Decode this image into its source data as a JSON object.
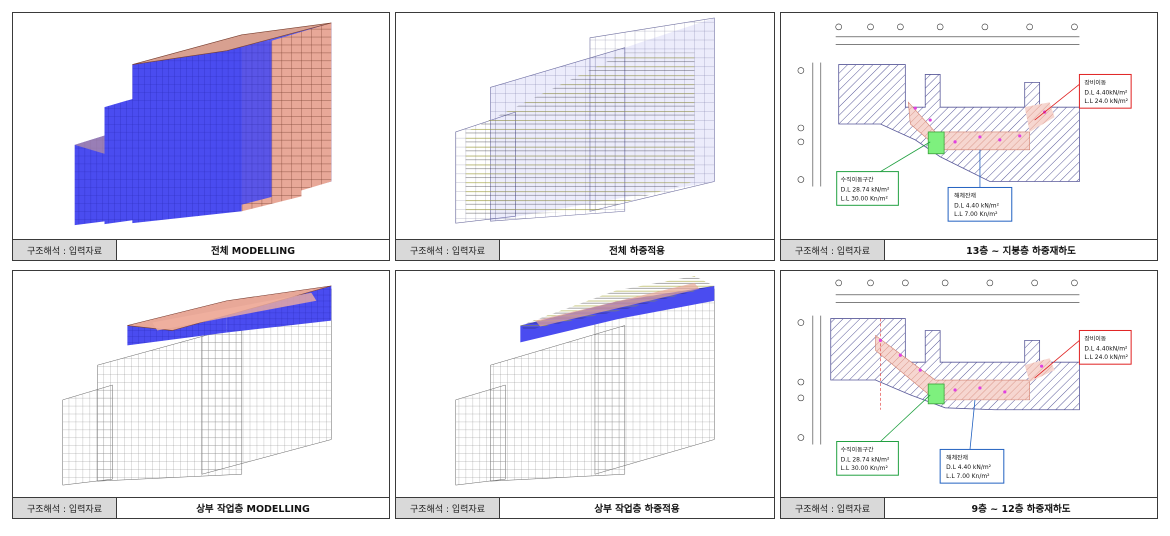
{
  "panels": [
    {
      "tag": "구조해석 : 입력자료",
      "title": "전체 MODELLING"
    },
    {
      "tag": "구조해석 : 입력자료",
      "title": "전체 하중적용"
    },
    {
      "tag": "구조해석 : 입력자료",
      "title": "13층 ~ 지붕층 하중재하도"
    },
    {
      "tag": "구조해석 : 입력자료",
      "title": "상부 작업층 MODELLING"
    },
    {
      "tag": "구조해석 : 입력자료",
      "title": "상부 작업층 하중적용"
    },
    {
      "tag": "구조해석 : 입력자료",
      "title": "9층 ~ 12층 하중재하도"
    }
  ],
  "plan_top": {
    "equipment": {
      "title": "장비이동",
      "dl": "D.L 4.40kN/m²",
      "ll": "L.L 24.0 kN/m²"
    },
    "vertical": {
      "title": "수직이동구간",
      "dl": "D.L 28.74 kN/m²",
      "ll": "L.L 30.00 Kn/m²"
    },
    "demolition": {
      "title": "해체잔재",
      "dl": "D.L 4.40 kN/m²",
      "ll": "L.L 7.00 Kn/m²"
    }
  },
  "plan_bottom": {
    "equipment": {
      "title": "장비이동",
      "dl": "D.L 4.40kN/m²",
      "ll": "L.L 24.0 kN/m²"
    },
    "vertical": {
      "title": "수직이동구간",
      "dl": "D.L 28.74 kN/m²",
      "ll": "L.L 30.00 Kn/m²"
    },
    "demolition": {
      "title": "해체잔재",
      "dl": "D.L 4.40 kN/m²",
      "ll": "L.L 7.00 Kn/m²"
    }
  },
  "colors": {
    "wall_blue": "#4a4cf0",
    "slab_pink": "#e8a898",
    "load_green": "#9a9a20",
    "hatch": "#5a5a9a"
  }
}
